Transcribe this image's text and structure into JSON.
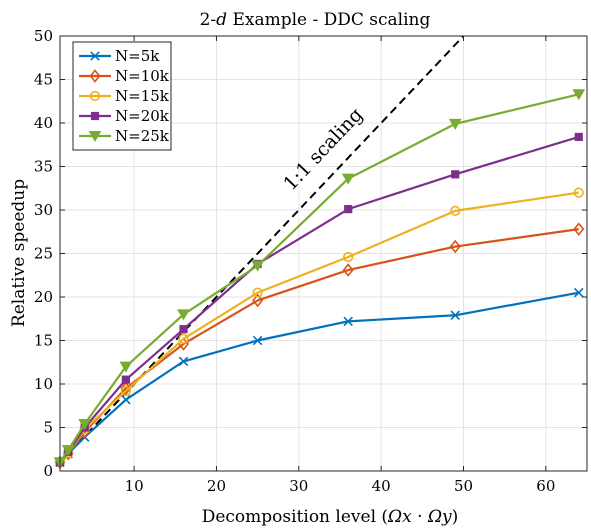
{
  "chart_data": {
    "type": "line",
    "title_prefix": "2-",
    "title_var": "d",
    "title_suffix": " Example - DDC scaling",
    "xlabel_text": "Decomposition level (",
    "xlabel_math": "Ωx · Ωy",
    "xlabel_close": ")",
    "ylabel": "Relative speedup",
    "xlim": [
      1,
      65
    ],
    "ylim": [
      0,
      50
    ],
    "xticks": [
      10,
      20,
      30,
      40,
      50,
      60
    ],
    "yticks": [
      0,
      5,
      10,
      15,
      20,
      25,
      30,
      35,
      40,
      45,
      50
    ],
    "grid": true,
    "legend_position": "top-left",
    "x": [
      1,
      2,
      4,
      9,
      16,
      25,
      36,
      49,
      64
    ],
    "series": [
      {
        "name": "N=5k",
        "color": "#0072BD",
        "marker": "x",
        "values": [
          1.0,
          2.0,
          3.9,
          8.2,
          12.6,
          15.0,
          17.2,
          17.9,
          20.5
        ]
      },
      {
        "name": "N=10k",
        "color": "#D95319",
        "marker": "diamond",
        "values": [
          1.0,
          2.0,
          4.5,
          9.5,
          14.6,
          19.6,
          23.1,
          25.8,
          27.8
        ]
      },
      {
        "name": "N=15k",
        "color": "#EDB120",
        "marker": "circle",
        "values": [
          1.0,
          2.1,
          4.8,
          9.2,
          15.2,
          20.5,
          24.6,
          29.9,
          32.0
        ]
      },
      {
        "name": "N=20k",
        "color": "#7E2F8E",
        "marker": "square",
        "values": [
          1.0,
          2.2,
          5.0,
          10.5,
          16.3,
          23.8,
          30.1,
          34.1,
          38.4
        ]
      },
      {
        "name": "N=25k",
        "color": "#77AC30",
        "marker": "triangle-down",
        "values": [
          1.0,
          2.4,
          5.4,
          12.0,
          18.0,
          23.6,
          33.6,
          39.9,
          43.3
        ]
      }
    ],
    "reference_line": {
      "label": "1:1 scaling",
      "color": "#000000",
      "style": "dashed",
      "x": [
        1,
        50
      ],
      "y": [
        1,
        50
      ]
    }
  }
}
